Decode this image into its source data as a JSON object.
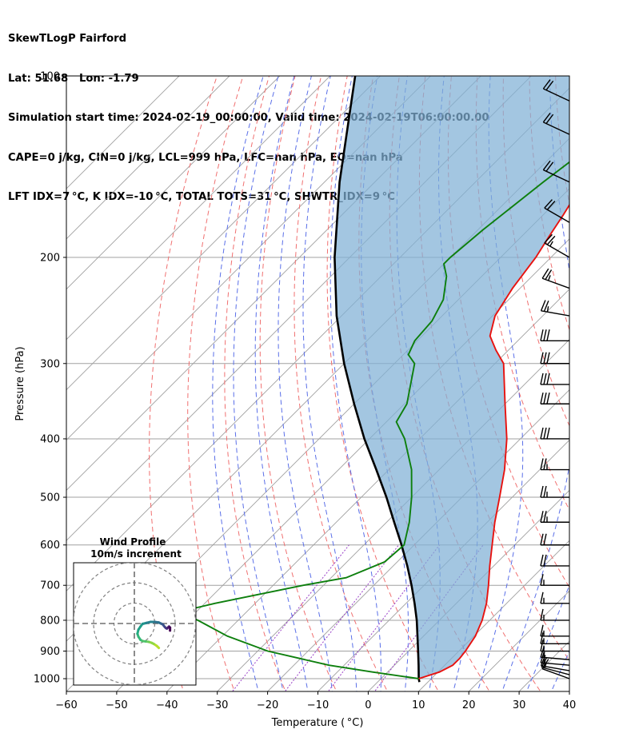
{
  "header": {
    "line1": "SkewTLogP Fairford",
    "line2": "Lat: 51.68   Lon: -1.79",
    "line3": "Simulation start time: 2024-02-19_00:00:00, Valid time: 2024-02-19T06:00:00.00",
    "line4": "CAPE=0 j/kg, CIN=0 j/kg, LCL=999 hPa, LFC=nan hPa, EQ=nan hPa",
    "line5": "LFT IDX=7 °C, K IDX=-10 °C, TOTAL TOTS=31 °C, SHWTR_IDX=9 °C"
  },
  "chart_data": {
    "type": "line",
    "xlabel": "Temperature ( °C)",
    "ylabel": "Pressure (hPa)",
    "xlim": [
      -60,
      40
    ],
    "ylim": [
      1050,
      100
    ],
    "y_scale": "log",
    "x_ticks": [
      -60,
      -50,
      -40,
      -30,
      -20,
      -10,
      0,
      10,
      20,
      30,
      40
    ],
    "y_ticks": [
      100,
      200,
      300,
      400,
      500,
      600,
      700,
      800,
      900,
      1000
    ],
    "grid": true,
    "colors": {
      "temperature": "#e8120f",
      "dewpoint": "#0d7f0d",
      "parcel": "#000000",
      "cin_shade": "#7fb0d6",
      "isotherm": "#a0a0a0",
      "dry_adiabat": "#f07070",
      "moist_adiabat": "#5a6fe8",
      "mixing_ratio": "#9a40c8"
    },
    "series": [
      {
        "key": "temperature",
        "p": [
          1000,
          975,
          950,
          925,
          900,
          850,
          800,
          750,
          700,
          650,
          600,
          550,
          500,
          450,
          400,
          350,
          300,
          285,
          270,
          250,
          225,
          200,
          185,
          170,
          150,
          140,
          120,
          100
        ],
        "values": [
          7.5,
          10.3,
          11.6,
          11.6,
          11.3,
          10.3,
          8.5,
          6.0,
          2.8,
          -0.8,
          -4.5,
          -8.5,
          -12.5,
          -17.0,
          -22.7,
          -30.0,
          -38.3,
          -42.5,
          -46.5,
          -49.5,
          -51.5,
          -53.0,
          -54.5,
          -56.0,
          -58.5,
          -59.5,
          -60.3,
          -61.5
        ]
      },
      {
        "key": "dewpoint",
        "p": [
          1000,
          975,
          950,
          900,
          850,
          800,
          775,
          750,
          700,
          680,
          640,
          600,
          550,
          500,
          450,
          400,
          375,
          350,
          300,
          290,
          275,
          255,
          235,
          215,
          205,
          200,
          180,
          150,
          100
        ],
        "values": [
          7.5,
          -3.0,
          -13.0,
          -28.0,
          -39.0,
          -48.0,
          -53.5,
          -48.0,
          -34.0,
          -27.0,
          -22.5,
          -22.0,
          -25.5,
          -30.0,
          -35.5,
          -43.0,
          -48.0,
          -49.5,
          -56.0,
          -59.0,
          -60.5,
          -61.0,
          -63.0,
          -67.0,
          -70.0,
          -70.0,
          -69.0,
          -66.5,
          -60.0
        ]
      },
      {
        "key": "parcel",
        "p": [
          1013,
          1000,
          950,
          900,
          850,
          800,
          750,
          700,
          650,
          600,
          550,
          500,
          450,
          400,
          350,
          300,
          250,
          200,
          150,
          100
        ],
        "values": [
          8.3,
          7.5,
          4.8,
          1.9,
          -1.2,
          -4.5,
          -8.3,
          -12.5,
          -17.2,
          -22.5,
          -28.5,
          -35.0,
          -42.5,
          -51.0,
          -60.0,
          -70.0,
          -81.0,
          -93.0,
          -107.0,
          -125.0
        ]
      }
    ],
    "wind_barbs": {
      "p": [
        1000,
        985,
        970,
        950,
        930,
        900,
        875,
        850,
        800,
        750,
        700,
        650,
        600,
        550,
        500,
        450,
        400,
        350,
        325,
        300,
        275,
        250,
        225,
        200,
        175,
        150,
        125,
        110
      ],
      "speed": [
        12,
        15,
        15,
        15,
        15,
        15,
        15,
        15,
        15,
        15,
        15,
        20,
        20,
        25,
        25,
        25,
        30,
        30,
        30,
        30,
        30,
        25,
        25,
        25,
        20,
        20,
        20,
        20
      ],
      "direction": [
        290,
        285,
        280,
        275,
        275,
        270,
        270,
        270,
        270,
        270,
        270,
        270,
        270,
        270,
        270,
        270,
        270,
        270,
        270,
        270,
        270,
        280,
        290,
        300,
        300,
        295,
        295,
        295
      ]
    },
    "hodograph": {
      "title": "Wind Profile",
      "subtitle": "10m/s increment",
      "rings_ms": [
        10,
        20,
        30
      ],
      "u": [
        12,
        11.0,
        9.5,
        8.5,
        7.0,
        5.5,
        4.0,
        3.0,
        2.0,
        1.5,
        2.0,
        3.0,
        4.0,
        6.0,
        8.0,
        10.0,
        12.0,
        13.0,
        14.0,
        14.5,
        15.0,
        15.5,
        16.0,
        16.5,
        17.0,
        17.5,
        17.5
      ],
      "v": [
        -12,
        -11.0,
        -10.0,
        -9.5,
        -9.0,
        -8.8,
        -8.6,
        -8.0,
        -6.5,
        -5.0,
        -3.0,
        -1.5,
        -0.2,
        0.3,
        0.8,
        0.8,
        0.5,
        0.0,
        -0.5,
        -1.2,
        -1.8,
        -2.3,
        -2.5,
        -2.0,
        -1.5,
        -2.0,
        -3.5
      ]
    }
  }
}
